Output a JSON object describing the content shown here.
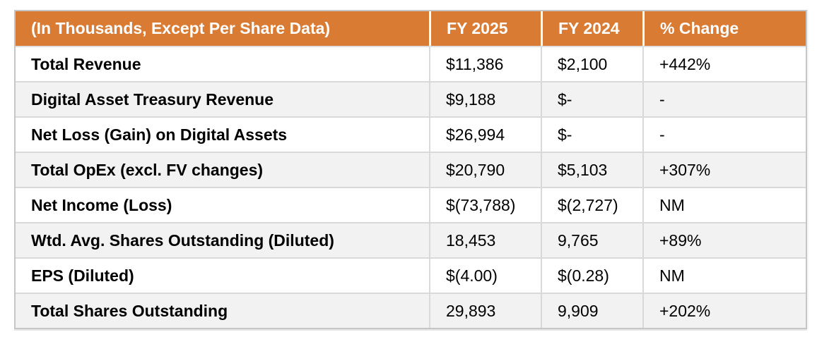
{
  "chart_data": {
    "type": "table",
    "columns": [
      "(In Thousands, Except Per Share Data)",
      "FY 2025",
      "FY 2024",
      "% Change"
    ],
    "rows": [
      [
        "Total Revenue",
        "$11,386",
        "$2,100",
        "+442%"
      ],
      [
        "Digital Asset Treasury Revenue",
        "$9,188",
        "$-",
        "-"
      ],
      [
        "Net Loss (Gain) on Digital Assets",
        "$26,994",
        "$-",
        "-"
      ],
      [
        "Total OpEx (excl. FV changes)",
        "$20,790",
        "$5,103",
        "+307%"
      ],
      [
        "Net Income (Loss)",
        "$(73,788)",
        "$(2,727)",
        "NM"
      ],
      [
        "Wtd. Avg. Shares Outstanding (Diluted)",
        "18,453",
        "9,765",
        "+89%"
      ],
      [
        "EPS (Diluted)",
        "$(4.00)",
        "$(0.28)",
        "NM"
      ],
      [
        "Total Shares Outstanding",
        "29,893",
        "9,909",
        "+202%"
      ]
    ],
    "layout": {
      "striped_rows": true,
      "stripe_pattern": "even rows shaded",
      "value_alignment": "left"
    },
    "colors": {
      "header_bg": "#D97B33",
      "header_text": "#FFFFFF",
      "row_stripe": "#F2F2F2",
      "row_plain": "#FFFFFF",
      "border_outer": "#C6C6C6",
      "border_inner": "#D9D9D9",
      "body_text": "#000000"
    }
  }
}
